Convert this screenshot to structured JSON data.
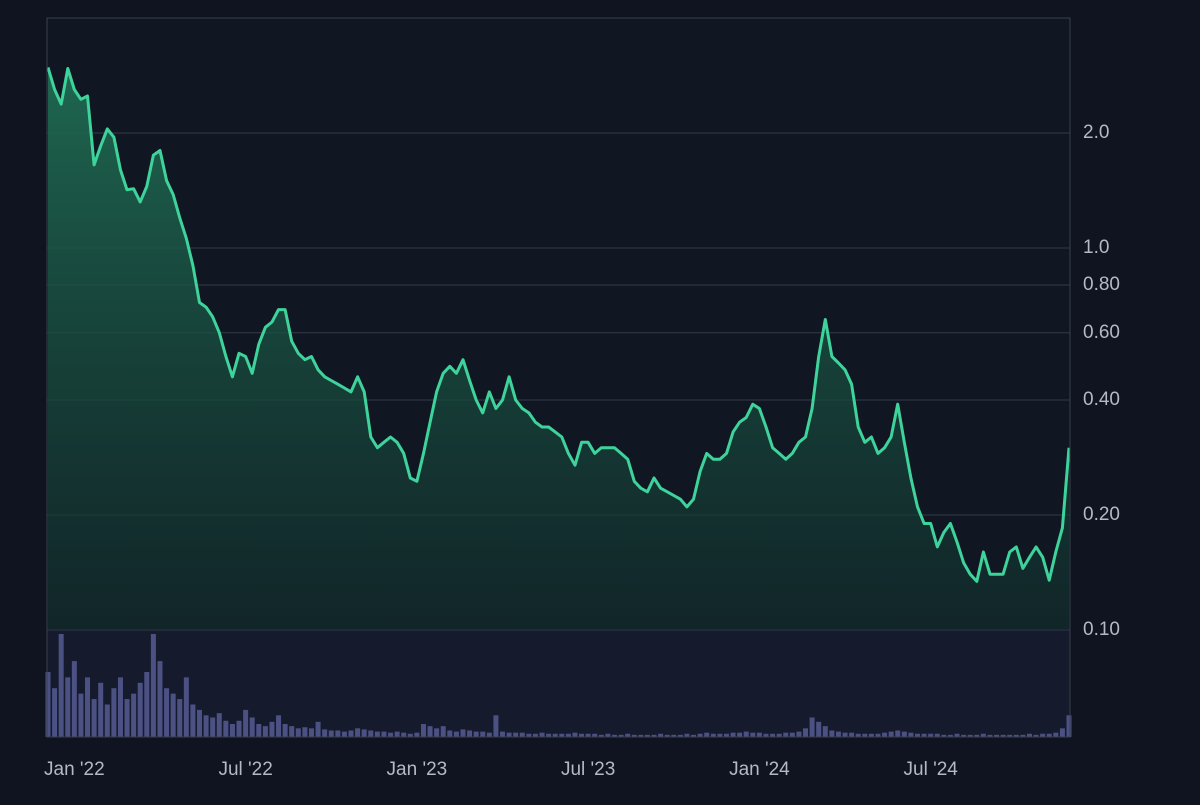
{
  "chart_data": {
    "type": "line",
    "log_scale": true,
    "grid": true,
    "color": "#3fd39c",
    "volume_color": "#4c5184",
    "categories": [
      null,
      null,
      null,
      null,
      "Jan '22",
      null,
      null,
      null,
      null,
      null,
      null,
      null,
      null,
      null,
      null,
      null,
      null,
      null,
      null,
      null,
      null,
      null,
      null,
      null,
      null,
      null,
      null,
      null,
      null,
      null,
      "Jul '22",
      null,
      null,
      null,
      null,
      null,
      null,
      null,
      null,
      null,
      null,
      null,
      null,
      null,
      null,
      null,
      null,
      null,
      null,
      null,
      null,
      null,
      null,
      null,
      null,
      null,
      "Jan '23",
      null,
      null,
      null,
      null,
      null,
      null,
      null,
      null,
      null,
      null,
      null,
      null,
      null,
      null,
      null,
      null,
      null,
      null,
      null,
      null,
      null,
      null,
      null,
      null,
      null,
      "Jul '23",
      null,
      null,
      null,
      null,
      null,
      null,
      null,
      null,
      null,
      null,
      null,
      null,
      null,
      null,
      null,
      null,
      null,
      null,
      null,
      null,
      null,
      null,
      null,
      null,
      null,
      "Jan '24",
      null,
      null,
      null,
      null,
      null,
      null,
      null,
      null,
      null,
      null,
      null,
      null,
      null,
      null,
      null,
      null,
      null,
      null,
      null,
      null,
      null,
      null,
      null,
      null,
      null,
      "Jul '24",
      null,
      null,
      null,
      null,
      null,
      null,
      null,
      null,
      null,
      null,
      null,
      null,
      null,
      null,
      null,
      null,
      null,
      null,
      null,
      null,
      null
    ],
    "values": [
      2.97,
      2.6,
      2.38,
      2.95,
      2.6,
      2.45,
      2.5,
      1.65,
      1.85,
      2.05,
      1.95,
      1.6,
      1.42,
      1.43,
      1.32,
      1.45,
      1.75,
      1.8,
      1.5,
      1.38,
      1.2,
      1.06,
      0.9,
      0.72,
      0.7,
      0.66,
      0.6,
      0.52,
      0.46,
      0.53,
      0.52,
      0.47,
      0.56,
      0.62,
      0.64,
      0.69,
      0.69,
      0.57,
      0.53,
      0.51,
      0.52,
      0.48,
      0.46,
      0.45,
      0.44,
      0.43,
      0.42,
      0.46,
      0.42,
      0.32,
      0.3,
      0.31,
      0.32,
      0.31,
      0.29,
      0.25,
      0.245,
      0.29,
      0.35,
      0.42,
      0.47,
      0.49,
      0.47,
      0.51,
      0.45,
      0.4,
      0.37,
      0.42,
      0.38,
      0.4,
      0.46,
      0.4,
      0.38,
      0.37,
      0.35,
      0.34,
      0.34,
      0.33,
      0.32,
      0.29,
      0.27,
      0.31,
      0.31,
      0.29,
      0.3,
      0.3,
      0.3,
      0.29,
      0.28,
      0.245,
      0.235,
      0.23,
      0.25,
      0.235,
      0.23,
      0.225,
      0.22,
      0.21,
      0.22,
      0.26,
      0.29,
      0.28,
      0.28,
      0.29,
      0.33,
      0.35,
      0.36,
      0.39,
      0.38,
      0.34,
      0.3,
      0.29,
      0.28,
      0.29,
      0.31,
      0.32,
      0.38,
      0.52,
      0.65,
      0.52,
      0.5,
      0.48,
      0.44,
      0.34,
      0.31,
      0.32,
      0.29,
      0.3,
      0.32,
      0.39,
      0.31,
      0.25,
      0.21,
      0.19,
      0.19,
      0.165,
      0.18,
      0.19,
      0.17,
      0.15,
      0.14,
      0.134,
      0.16,
      0.14,
      0.14,
      0.14,
      0.16,
      0.165,
      0.145,
      0.155,
      0.165,
      0.155,
      0.135,
      0.16,
      0.185,
      0.3
    ],
    "volume": [
      60,
      45,
      95,
      55,
      70,
      40,
      55,
      35,
      50,
      30,
      45,
      55,
      35,
      40,
      50,
      60,
      95,
      70,
      45,
      40,
      35,
      55,
      30,
      25,
      20,
      18,
      22,
      15,
      12,
      15,
      25,
      18,
      12,
      10,
      14,
      20,
      12,
      10,
      8,
      9,
      8,
      14,
      7,
      6,
      6,
      5,
      6,
      8,
      7,
      6,
      5,
      5,
      4,
      5,
      4,
      3,
      4,
      12,
      10,
      8,
      10,
      6,
      5,
      7,
      6,
      5,
      5,
      4,
      20,
      5,
      4,
      4,
      4,
      3,
      3,
      4,
      3,
      3,
      3,
      3,
      4,
      3,
      3,
      3,
      2,
      3,
      2,
      2,
      3,
      2,
      2,
      2,
      2,
      3,
      2,
      2,
      2,
      3,
      2,
      3,
      4,
      3,
      3,
      3,
      4,
      4,
      5,
      4,
      4,
      3,
      3,
      3,
      4,
      4,
      5,
      8,
      18,
      14,
      10,
      6,
      5,
      4,
      4,
      3,
      3,
      3,
      3,
      4,
      5,
      6,
      5,
      4,
      3,
      3,
      3,
      3,
      2,
      2,
      3,
      2,
      2,
      2,
      3,
      2,
      2,
      2,
      2,
      2,
      2,
      3,
      2,
      3,
      3,
      4,
      8,
      20
    ],
    "ylim": [
      0.1,
      4.0
    ],
    "yticks": [
      {
        "value": 0.1,
        "label": "0.10"
      },
      {
        "value": 0.2,
        "label": "0.20"
      },
      {
        "value": 0.4,
        "label": "0.40"
      },
      {
        "value": 0.6,
        "label": "0.60"
      },
      {
        "value": 0.8,
        "label": "0.80"
      },
      {
        "value": 1.0,
        "label": "1.0"
      },
      {
        "value": 2.0,
        "label": "2.0"
      }
    ]
  }
}
